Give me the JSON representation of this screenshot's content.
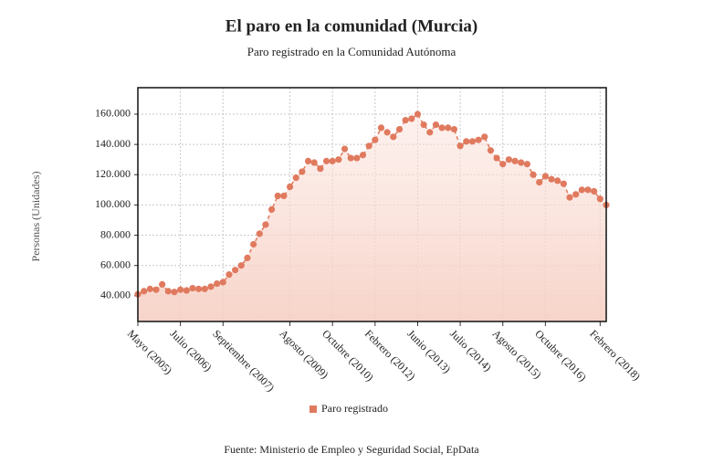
{
  "chart_data": {
    "type": "area",
    "title": "El paro en la comunidad (Murcia)",
    "subtitle": "Paro registrado en la Comunidad Autónoma",
    "ylabel": "Personas (Unidades)",
    "source": "Fuente: Ministerio de Empleo y Seguridad Social, EpData",
    "categories": [
      "Mayo (2005)",
      null,
      null,
      null,
      null,
      null,
      null,
      "Julio (2006)",
      null,
      null,
      null,
      null,
      null,
      null,
      "Septiembre (2007)",
      null,
      null,
      null,
      null,
      null,
      null,
      null,
      null,
      null,
      null,
      "Agosto (2009)",
      null,
      null,
      null,
      null,
      null,
      null,
      "Octubre (2010)",
      null,
      null,
      null,
      null,
      null,
      null,
      "Febrero (2012)",
      null,
      null,
      null,
      null,
      null,
      null,
      "Junio (2013)",
      null,
      null,
      null,
      null,
      null,
      null,
      "Julio (2014)",
      null,
      null,
      null,
      null,
      null,
      null,
      "Agosto (2015)",
      null,
      null,
      null,
      null,
      null,
      null,
      "Octubre (2016)",
      null,
      null,
      null,
      null,
      null,
      null,
      null,
      null,
      "Febrero (2018)",
      null
    ],
    "series": [
      {
        "name": "Paro registrado",
        "color": "#e07a5f",
        "values": [
          41000,
          43000,
          44500,
          44000,
          47500,
          43000,
          42500,
          44000,
          43500,
          45000,
          44500,
          44500,
          46000,
          48000,
          49000,
          54000,
          57000,
          60000,
          65000,
          74000,
          81000,
          87000,
          97000,
          106000,
          106000,
          112000,
          118000,
          122000,
          129000,
          128000,
          124000,
          129000,
          129000,
          130000,
          137000,
          131000,
          131000,
          133000,
          139000,
          143000,
          151000,
          148000,
          145000,
          150000,
          156000,
          157000,
          160000,
          153000,
          148000,
          153000,
          151000,
          151000,
          150000,
          139000,
          142000,
          142000,
          143000,
          145000,
          136000,
          131000,
          127000,
          130000,
          129000,
          128000,
          127000,
          120000,
          115000,
          119000,
          117000,
          116000,
          114000,
          105000,
          107000,
          110000,
          110000,
          109000,
          104000,
          100000
        ]
      }
    ],
    "ylim": [
      23000,
      177500
    ],
    "yticks": [
      {
        "value": 40000,
        "label": "40.000"
      },
      {
        "value": 60000,
        "label": "60.000"
      },
      {
        "value": 80000,
        "label": "80.000"
      },
      {
        "value": 100000,
        "label": "100.000"
      },
      {
        "value": 120000,
        "label": "120.000"
      },
      {
        "value": 140000,
        "label": "140.000"
      },
      {
        "value": 160000,
        "label": "160.000"
      }
    ],
    "grid": true,
    "legend": "bottom"
  }
}
